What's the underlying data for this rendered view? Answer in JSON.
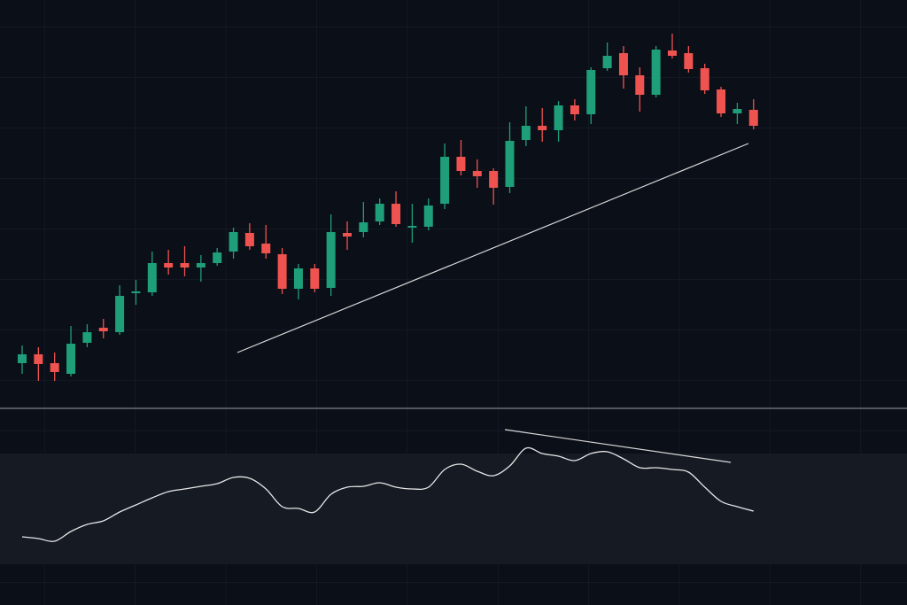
{
  "chart_data": [
    {
      "type": "candlestick",
      "open": [
        50,
        60,
        50,
        38,
        73,
        90,
        85,
        129,
        130,
        163,
        163,
        158,
        163,
        176,
        197,
        185,
        173,
        134,
        157,
        135,
        197,
        198,
        210,
        230,
        203,
        204,
        230,
        283,
        267,
        267,
        249,
        302,
        318,
        313,
        341,
        331,
        383,
        400,
        375,
        353,
        403,
        400,
        383,
        359,
        332,
        336
      ],
      "high": [
        70,
        68,
        62,
        92,
        94,
        100,
        138,
        144,
        176,
        178,
        182,
        172,
        180,
        203,
        208,
        206,
        180,
        162,
        162,
        218,
        210,
        232,
        236,
        244,
        230,
        236,
        298,
        302,
        280,
        270,
        322,
        340,
        338,
        346,
        348,
        384,
        412,
        408,
        384,
        408,
        422,
        408,
        388,
        362,
        344,
        348
      ],
      "low": [
        38,
        30,
        30,
        35,
        68,
        78,
        82,
        116,
        126,
        150,
        148,
        142,
        160,
        168,
        178,
        168,
        128,
        122,
        130,
        126,
        178,
        192,
        206,
        204,
        186,
        200,
        224,
        262,
        248,
        229,
        242,
        295,
        300,
        300,
        324,
        320,
        380,
        360,
        334,
        350,
        394,
        378,
        354,
        328,
        320,
        314
      ],
      "close": [
        60,
        49,
        40,
        72,
        85,
        86,
        126,
        131,
        163,
        158,
        158,
        163,
        175,
        198,
        182,
        174,
        134,
        157,
        134,
        198,
        193,
        209,
        230,
        207,
        205,
        228,
        283,
        267,
        261,
        248,
        301,
        318,
        313,
        341,
        331,
        381,
        397,
        375,
        353,
        404,
        397,
        382,
        358,
        332,
        337,
        318
      ],
      "up_color": "#1f9e7a",
      "down_color": "#ef5350",
      "ylim": [
        0,
        460
      ]
    },
    {
      "type": "line",
      "values": [
        77,
        75,
        72,
        83,
        91,
        95,
        105,
        113,
        121,
        128,
        131,
        134,
        137,
        144,
        143,
        131,
        111,
        109,
        105,
        125,
        133,
        134,
        138,
        133,
        131,
        133,
        153,
        159,
        151,
        146,
        157,
        177,
        171,
        168,
        163,
        171,
        173,
        165,
        155,
        155,
        153,
        150,
        133,
        117,
        111,
        106
      ],
      "color": "#e6e6e6",
      "ylim": [
        0,
        221
      ]
    }
  ]
}
